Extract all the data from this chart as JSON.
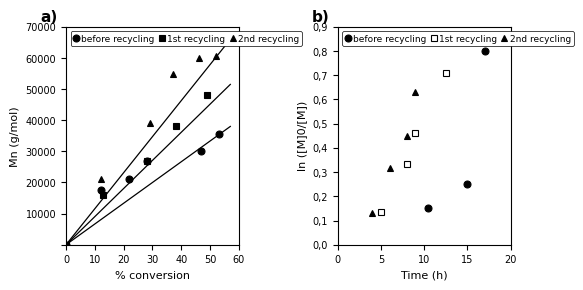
{
  "panel_a": {
    "title": "a)",
    "xlabel": "% conversion",
    "ylabel": "Mn (g/mol)",
    "xlim": [
      0,
      60
    ],
    "ylim": [
      0,
      70000
    ],
    "xticks": [
      0,
      10,
      20,
      30,
      40,
      50,
      60
    ],
    "yticks": [
      0,
      10000,
      20000,
      30000,
      40000,
      50000,
      60000,
      70000
    ],
    "series": {
      "before_recycling": {
        "x": [
          0,
          12,
          22,
          28,
          47,
          53
        ],
        "y": [
          0,
          17500,
          21000,
          27000,
          30000,
          35500
        ],
        "marker": "o",
        "fill": "black",
        "label": "before recycling",
        "fit_x": [
          0,
          57
        ],
        "fit_y": [
          0,
          38000
        ]
      },
      "first_recycling": {
        "x": [
          0,
          13,
          28,
          38,
          49
        ],
        "y": [
          0,
          16000,
          27000,
          38000,
          48000
        ],
        "marker": "s",
        "fill": "black",
        "label": "1st recycling",
        "fit_x": [
          0,
          57
        ],
        "fit_y": [
          0,
          51500
        ]
      },
      "second_recycling": {
        "x": [
          0,
          12,
          29,
          37,
          46,
          52
        ],
        "y": [
          0,
          21000,
          39000,
          55000,
          60000,
          60500
        ],
        "marker": "^",
        "fill": "black",
        "label": "2nd recycling",
        "fit_x": [
          0,
          57
        ],
        "fit_y": [
          0,
          66000
        ]
      }
    }
  },
  "panel_b": {
    "title": "b)",
    "xlabel": "Time (h)",
    "ylabel": "ln ([M]0/[M])",
    "xlim": [
      0,
      20
    ],
    "ylim": [
      0,
      0.9
    ],
    "xticks": [
      0,
      5,
      10,
      15,
      20
    ],
    "yticks": [
      0.0,
      0.1,
      0.2,
      0.3,
      0.4,
      0.5,
      0.6,
      0.7,
      0.8,
      0.9
    ],
    "series": {
      "before_recycling": {
        "x": [
          10.5,
          15,
          17
        ],
        "y": [
          0.15,
          0.25,
          0.8
        ],
        "marker": "o",
        "fill": "black",
        "label": "before recycling"
      },
      "first_recycling": {
        "x": [
          5,
          8,
          9,
          12.5
        ],
        "y": [
          0.135,
          0.335,
          0.46,
          0.71
        ],
        "marker": "s",
        "fill": "none",
        "label": "1st recycling"
      },
      "second_recycling": {
        "x": [
          4,
          6,
          8,
          9
        ],
        "y": [
          0.13,
          0.315,
          0.45,
          0.63
        ],
        "marker": "^",
        "fill": "black",
        "label": "2nd recycling"
      }
    }
  },
  "markersize": 5,
  "linewidth": 0.9,
  "legend_fontsize": 6.5,
  "tick_fontsize": 7,
  "axis_label_fontsize": 8,
  "panel_label_fontsize": 11
}
